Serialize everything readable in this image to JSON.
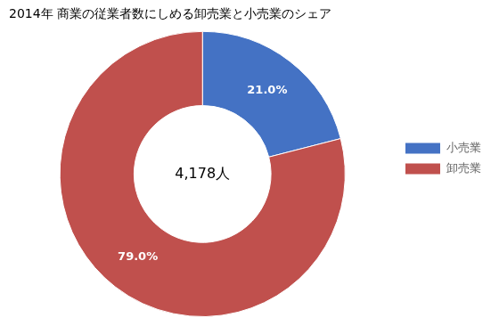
{
  "chart_data": {
    "type": "doughnut",
    "title": "2014年 商業の従業者数にしめる卸売業と小売業のシェア",
    "categories": [
      "小売業",
      "卸売業"
    ],
    "values": [
      21.0,
      79.0
    ],
    "value_labels": [
      "21.0%",
      "79.0%"
    ],
    "colors": [
      "#4472C4",
      "#C0504D"
    ],
    "data_labels": true,
    "annotations": [
      "4,178人"
    ],
    "legend": "right"
  }
}
